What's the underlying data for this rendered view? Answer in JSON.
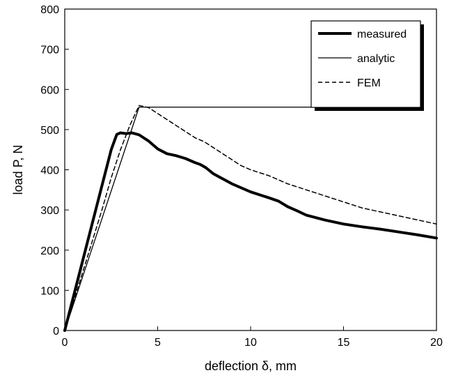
{
  "chart_data": {
    "type": "line",
    "xlabel": "deflection  δ, mm",
    "ylabel": "load P, N",
    "xlim": [
      0,
      20
    ],
    "ylim": [
      0,
      800
    ],
    "x_ticks": [
      0,
      5,
      10,
      15,
      20
    ],
    "y_ticks": [
      0,
      100,
      200,
      300,
      400,
      500,
      600,
      700,
      800
    ],
    "grid": false,
    "legend_position": "top-right",
    "series": [
      {
        "name": "measured",
        "style": "thick-solid",
        "color": "#000000",
        "x": [
          0,
          0.5,
          1.0,
          1.5,
          2.0,
          2.5,
          2.8,
          3.0,
          3.3,
          3.6,
          4.0,
          4.5,
          5.0,
          5.5,
          6.0,
          6.5,
          7.0,
          7.3,
          7.6,
          8.0,
          9.0,
          10.0,
          11.0,
          11.5,
          12.0,
          12.5,
          13.0,
          14.0,
          15.0,
          16.0,
          17.0,
          18.0,
          19.0,
          20.0
        ],
        "y": [
          0,
          90,
          180,
          270,
          360,
          450,
          488,
          492,
          490,
          492,
          487,
          472,
          452,
          440,
          435,
          428,
          418,
          413,
          405,
          390,
          365,
          345,
          330,
          322,
          308,
          298,
          287,
          275,
          265,
          258,
          252,
          245,
          238,
          230
        ]
      },
      {
        "name": "analytic",
        "style": "thin-solid",
        "color": "#000000",
        "x": [
          0,
          4.0,
          15.5
        ],
        "y": [
          0,
          556,
          556
        ]
      },
      {
        "name": "FEM",
        "style": "dashed",
        "color": "#000000",
        "x": [
          0,
          0.5,
          1.0,
          1.5,
          2.0,
          2.5,
          3.0,
          3.5,
          4.0,
          4.5,
          5.0,
          5.5,
          6.0,
          6.5,
          7.0,
          7.5,
          8.0,
          8.5,
          9.0,
          9.5,
          10.0,
          11.0,
          12.0,
          13.0,
          14.0,
          15.0,
          16.0,
          17.0,
          18.0,
          19.0,
          20.0
        ],
        "y": [
          0,
          75,
          150,
          225,
          300,
          380,
          450,
          510,
          560,
          555,
          540,
          525,
          510,
          495,
          480,
          470,
          455,
          440,
          425,
          410,
          400,
          385,
          365,
          350,
          335,
          320,
          305,
          295,
          285,
          275,
          265
        ]
      }
    ]
  }
}
